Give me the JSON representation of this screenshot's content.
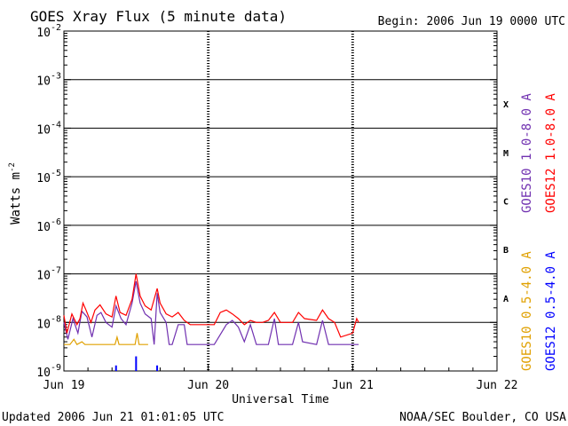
{
  "chart_data": {
    "type": "line",
    "title": "GOES Xray Flux (5 minute data)",
    "begin_label": "Begin:  2006 Jun 19 0000 UTC",
    "xlabel": "Universal Time",
    "ylabel_main": "Watts m",
    "ylabel_sup": "-2",
    "footer_left": "Updated 2006 Jun 21 01:01:05 UTC",
    "footer_right": "NOAA/SEC Boulder, CO USA",
    "y_scale": "log",
    "ylim": [
      1e-09,
      0.01
    ],
    "xlim": [
      "2006-06-19T00:00",
      "2006-06-22T00:00"
    ],
    "x_ticks": [
      {
        "value": "2006-06-19T00:00",
        "label": "Jun 19"
      },
      {
        "value": "2006-06-20T00:00",
        "label": "Jun 20"
      },
      {
        "value": "2006-06-21T00:00",
        "label": "Jun 21"
      },
      {
        "value": "2006-06-22T00:00",
        "label": "Jun 22"
      }
    ],
    "y_ticks": [
      {
        "value": 0.01,
        "base": "10",
        "exp": "-2"
      },
      {
        "value": 0.001,
        "base": "10",
        "exp": "-3"
      },
      {
        "value": 0.0001,
        "base": "10",
        "exp": "-4"
      },
      {
        "value": 1e-05,
        "base": "10",
        "exp": "-5"
      },
      {
        "value": 1e-06,
        "base": "10",
        "exp": "-6"
      },
      {
        "value": 1e-07,
        "base": "10",
        "exp": "-7"
      },
      {
        "value": 1e-08,
        "base": "10",
        "exp": "-8"
      },
      {
        "value": 1e-09,
        "base": "10",
        "exp": "-9"
      }
    ],
    "flare_classes": [
      {
        "label": "X",
        "from": 0.0001,
        "to": 0.001
      },
      {
        "label": "M",
        "from": 1e-05,
        "to": 0.0001
      },
      {
        "label": "C",
        "from": 1e-06,
        "to": 1e-05
      },
      {
        "label": "B",
        "from": 1e-07,
        "to": 1e-06
      },
      {
        "label": "A",
        "from": 1e-08,
        "to": 1e-07
      }
    ],
    "class_lines": [
      0.001,
      0.0001,
      1e-05,
      1e-06,
      1e-07,
      1e-08
    ],
    "grid": "horizontal lines at class boundaries, dashed vertical lines at day boundaries",
    "legend_placement": "right",
    "series": [
      {
        "name": "GOES10 1.0-8.0 A",
        "color": "#7030b0",
        "points": [
          [
            "2006-06-19T00:00",
            1e-08
          ],
          [
            "2006-06-19T00:40",
            4.5e-09
          ],
          [
            "2006-06-19T01:30",
            1.2e-08
          ],
          [
            "2006-06-19T02:20",
            6e-09
          ],
          [
            "2006-06-19T03:00",
            1.7e-08
          ],
          [
            "2006-06-19T03:50",
            1.3e-08
          ],
          [
            "2006-06-19T04:40",
            5e-09
          ],
          [
            "2006-06-19T05:30",
            1.4e-08
          ],
          [
            "2006-06-19T06:10",
            1.6e-08
          ],
          [
            "2006-06-19T07:00",
            1e-08
          ],
          [
            "2006-06-19T08:00",
            8e-09
          ],
          [
            "2006-06-19T08:40",
            2.2e-08
          ],
          [
            "2006-06-19T09:30",
            1.2e-08
          ],
          [
            "2006-06-19T10:20",
            9e-09
          ],
          [
            "2006-06-19T11:20",
            2.5e-08
          ],
          [
            "2006-06-19T12:00",
            7e-08
          ],
          [
            "2006-06-19T12:40",
            2.5e-08
          ],
          [
            "2006-06-19T13:30",
            1.5e-08
          ],
          [
            "2006-06-19T14:30",
            1.2e-08
          ],
          [
            "2006-06-19T15:00",
            3.5e-09
          ],
          [
            "2006-06-19T15:30",
            4e-08
          ],
          [
            "2006-06-19T16:00",
            1.6e-08
          ],
          [
            "2006-06-19T17:00",
            1e-08
          ],
          [
            "2006-06-19T17:30",
            3.5e-09
          ],
          [
            "2006-06-19T18:00",
            3.5e-09
          ],
          [
            "2006-06-19T19:00",
            9e-09
          ],
          [
            "2006-06-19T20:00",
            9e-09
          ],
          [
            "2006-06-19T20:30",
            3.5e-09
          ],
          [
            "2006-06-19T21:30",
            3.5e-09
          ],
          [
            "2006-06-19T22:30",
            3.5e-09
          ],
          [
            "2006-06-20T01:00",
            3.5e-09
          ],
          [
            "2006-06-20T03:00",
            9e-09
          ],
          [
            "2006-06-20T04:00",
            1.1e-08
          ],
          [
            "2006-06-20T05:00",
            8e-09
          ],
          [
            "2006-06-20T06:00",
            4e-09
          ],
          [
            "2006-06-20T07:00",
            9e-09
          ],
          [
            "2006-06-20T08:00",
            3.5e-09
          ],
          [
            "2006-06-20T10:00",
            3.5e-09
          ],
          [
            "2006-06-20T11:00",
            1.2e-08
          ],
          [
            "2006-06-20T11:40",
            3.5e-09
          ],
          [
            "2006-06-20T14:00",
            3.5e-09
          ],
          [
            "2006-06-20T15:00",
            1e-08
          ],
          [
            "2006-06-20T15:40",
            4e-09
          ],
          [
            "2006-06-20T18:00",
            3.5e-09
          ],
          [
            "2006-06-20T19:00",
            1.1e-08
          ],
          [
            "2006-06-20T20:00",
            3.5e-09
          ],
          [
            "2006-06-21T01:00",
            3.5e-09
          ]
        ]
      },
      {
        "name": "GOES12 1.0-8.0 A",
        "color": "#ff0000",
        "points": [
          [
            "2006-06-19T00:00",
            1.4e-08
          ],
          [
            "2006-06-19T00:30",
            6e-09
          ],
          [
            "2006-06-19T01:20",
            1.5e-08
          ],
          [
            "2006-06-19T02:10",
            9e-09
          ],
          [
            "2006-06-19T02:40",
            1.2e-08
          ],
          [
            "2006-06-19T03:10",
            2.5e-08
          ],
          [
            "2006-06-19T03:40",
            1.8e-08
          ],
          [
            "2006-06-19T04:30",
            1e-08
          ],
          [
            "2006-06-19T05:10",
            1.8e-08
          ],
          [
            "2006-06-19T06:00",
            2.3e-08
          ],
          [
            "2006-06-19T07:00",
            1.5e-08
          ],
          [
            "2006-06-19T08:00",
            1.3e-08
          ],
          [
            "2006-06-19T08:40",
            3.5e-08
          ],
          [
            "2006-06-19T09:20",
            1.6e-08
          ],
          [
            "2006-06-19T10:20",
            1.4e-08
          ],
          [
            "2006-06-19T11:20",
            3e-08
          ],
          [
            "2006-06-19T12:00",
            1e-07
          ],
          [
            "2006-06-19T12:40",
            3.5e-08
          ],
          [
            "2006-06-19T13:30",
            2.2e-08
          ],
          [
            "2006-06-19T14:30",
            1.8e-08
          ],
          [
            "2006-06-19T15:30",
            5e-08
          ],
          [
            "2006-06-19T16:00",
            2.5e-08
          ],
          [
            "2006-06-19T17:00",
            1.5e-08
          ],
          [
            "2006-06-19T18:00",
            1.3e-08
          ],
          [
            "2006-06-19T19:00",
            1.6e-08
          ],
          [
            "2006-06-19T20:00",
            1.1e-08
          ],
          [
            "2006-06-19T21:00",
            9e-09
          ],
          [
            "2006-06-19T22:00",
            9e-09
          ],
          [
            "2006-06-20T01:00",
            9e-09
          ],
          [
            "2006-06-20T02:00",
            1.6e-08
          ],
          [
            "2006-06-20T03:00",
            1.8e-08
          ],
          [
            "2006-06-20T04:00",
            1.5e-08
          ],
          [
            "2006-06-20T05:00",
            1.2e-08
          ],
          [
            "2006-06-20T06:00",
            9e-09
          ],
          [
            "2006-06-20T07:00",
            1.1e-08
          ],
          [
            "2006-06-20T08:00",
            1e-08
          ],
          [
            "2006-06-20T09:00",
            1e-08
          ],
          [
            "2006-06-20T10:00",
            1.1e-08
          ],
          [
            "2006-06-20T11:00",
            1.6e-08
          ],
          [
            "2006-06-20T12:00",
            1e-08
          ],
          [
            "2006-06-20T14:00",
            1e-08
          ],
          [
            "2006-06-20T15:00",
            1.6e-08
          ],
          [
            "2006-06-20T16:00",
            1.2e-08
          ],
          [
            "2006-06-20T18:00",
            1.1e-08
          ],
          [
            "2006-06-20T19:00",
            1.8e-08
          ],
          [
            "2006-06-20T20:00",
            1.2e-08
          ],
          [
            "2006-06-20T21:00",
            1e-08
          ],
          [
            "2006-06-20T22:00",
            5e-09
          ],
          [
            "2006-06-21T00:00",
            6e-09
          ],
          [
            "2006-06-21T00:40",
            1.2e-08
          ],
          [
            "2006-06-21T01:00",
            1e-08
          ]
        ]
      },
      {
        "name": "GOES10 0.5-4.0 A",
        "color": "#e0a000",
        "points": [
          [
            "2006-06-19T00:00",
            3.5e-09
          ],
          [
            "2006-06-19T01:00",
            3.5e-09
          ],
          [
            "2006-06-19T01:40",
            4.5e-09
          ],
          [
            "2006-06-19T02:10",
            3.5e-09
          ],
          [
            "2006-06-19T03:00",
            4e-09
          ],
          [
            "2006-06-19T03:30",
            3.5e-09
          ],
          [
            "2006-06-19T08:30",
            3.5e-09
          ],
          [
            "2006-06-19T08:50",
            5e-09
          ],
          [
            "2006-06-19T09:10",
            3.5e-09
          ],
          [
            "2006-06-19T11:50",
            3.5e-09
          ],
          [
            "2006-06-19T12:10",
            6e-09
          ],
          [
            "2006-06-19T12:30",
            3.5e-09
          ],
          [
            "2006-06-19T14:00",
            3.5e-09
          ]
        ]
      },
      {
        "name": "GOES12 0.5-4.0 A",
        "color": "#0000ff",
        "points": [
          [
            "2006-06-19T08:40",
            1.3e-09
          ],
          [
            "2006-06-19T12:00",
            2e-09
          ],
          [
            "2006-06-19T15:30",
            1.3e-09
          ]
        ]
      }
    ]
  }
}
